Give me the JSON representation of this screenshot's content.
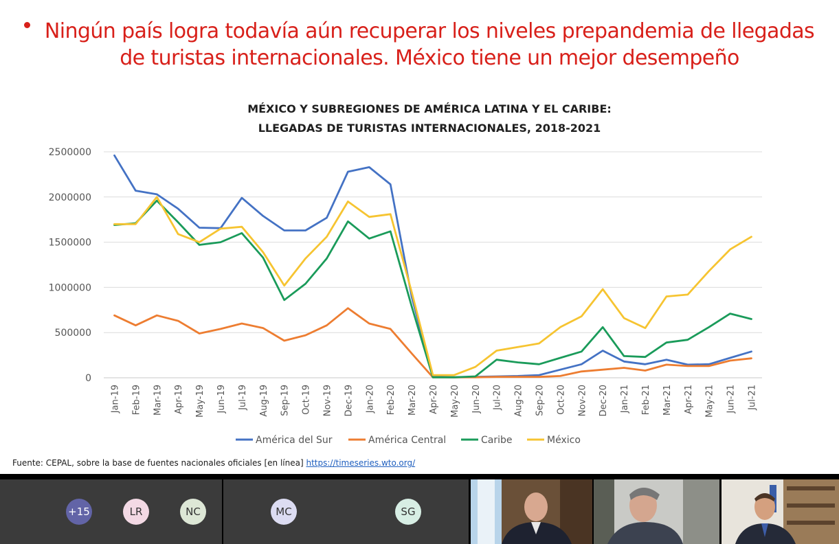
{
  "slide": {
    "headline_line1": "Ningún país logra todavía aún recuperar los niveles prepandemia de llegadas",
    "headline_line2": "de turistas internacionales. México tiene un mejor desempeño",
    "headline_color": "#d8201a",
    "source_text": "Fuente: CEPAL, sobre la base de fuentes nacionales oficiales [en línea] ",
    "source_link": "https://timeseries.wto.org/"
  },
  "chart_data": {
    "type": "line",
    "title_line1": "MÉXICO Y SUBREGIONES DE AMÉRICA LATINA Y EL CARIBE:",
    "title_line2": "LLEGADAS DE TURISTAS INTERNACIONALES, 2018-2021",
    "categories": [
      "Jan-19",
      "Feb-19",
      "Mar-19",
      "Apr-19",
      "May-19",
      "Jun-19",
      "Jul-19",
      "Aug-19",
      "Sep-19",
      "Oct-19",
      "Nov-19",
      "Dec-19",
      "Jan-20",
      "Feb-20",
      "Mar-20",
      "Apr-20",
      "May-20",
      "Jun-20",
      "Jul-20",
      "Aug-20",
      "Sep-20",
      "Oct-20",
      "Nov-20",
      "Dec-20",
      "Jan-21",
      "Feb-21",
      "Mar-21",
      "Apr-21",
      "May-21",
      "Jun-21",
      "Jul-21"
    ],
    "ylim": [
      0,
      2500000
    ],
    "yticks": [
      0,
      500000,
      1000000,
      1500000,
      2000000,
      2500000
    ],
    "ytick_labels": [
      "0",
      "500000",
      "1000000",
      "1500000",
      "2000000",
      "2500000"
    ],
    "grid": true,
    "legend_position": "bottom",
    "series": [
      {
        "name": "América del Sur",
        "color": "#4472c4",
        "values": [
          2460000,
          2070000,
          2030000,
          1870000,
          1660000,
          1655000,
          1990000,
          1790000,
          1630000,
          1630000,
          1770000,
          2280000,
          2330000,
          2140000,
          900000,
          10000,
          5000,
          10000,
          15000,
          20000,
          30000,
          90000,
          150000,
          300000,
          180000,
          150000,
          200000,
          145000,
          150000,
          220000,
          290000
        ]
      },
      {
        "name": "América Central",
        "color": "#ed7d31",
        "values": [
          690000,
          580000,
          690000,
          630000,
          490000,
          540000,
          600000,
          550000,
          410000,
          470000,
          580000,
          770000,
          600000,
          540000,
          270000,
          5000,
          5000,
          5000,
          10000,
          10000,
          10000,
          20000,
          70000,
          90000,
          110000,
          80000,
          145000,
          130000,
          130000,
          190000,
          215000
        ]
      },
      {
        "name": "Caribe",
        "color": "#1a9b5a",
        "values": [
          1690000,
          1710000,
          1960000,
          1720000,
          1470000,
          1500000,
          1600000,
          1330000,
          860000,
          1040000,
          1320000,
          1730000,
          1540000,
          1620000,
          790000,
          5000,
          5000,
          15000,
          200000,
          170000,
          150000,
          220000,
          290000,
          560000,
          240000,
          230000,
          390000,
          420000,
          560000,
          710000,
          650000
        ]
      },
      {
        "name": "México",
        "color": "#f6c431",
        "values": [
          1700000,
          1700000,
          2000000,
          1590000,
          1500000,
          1650000,
          1670000,
          1390000,
          1020000,
          1320000,
          1560000,
          1950000,
          1780000,
          1810000,
          950000,
          30000,
          30000,
          120000,
          300000,
          340000,
          380000,
          560000,
          680000,
          980000,
          660000,
          550000,
          900000,
          920000,
          1180000,
          1420000,
          1560000
        ]
      }
    ]
  },
  "meeting": {
    "avatars": [
      {
        "label": "+15",
        "color": "#6264a7",
        "text_color": "#ffffff"
      },
      {
        "label": "LR",
        "color": "#f3d9e4",
        "text_color": "#333333"
      },
      {
        "label": "NC",
        "color": "#dde7d6",
        "text_color": "#333333"
      },
      {
        "label": "MC",
        "color": "#dcdcf2",
        "text_color": "#333333"
      },
      {
        "label": "SG",
        "color": "#d7eee4",
        "text_color": "#333333"
      }
    ]
  }
}
